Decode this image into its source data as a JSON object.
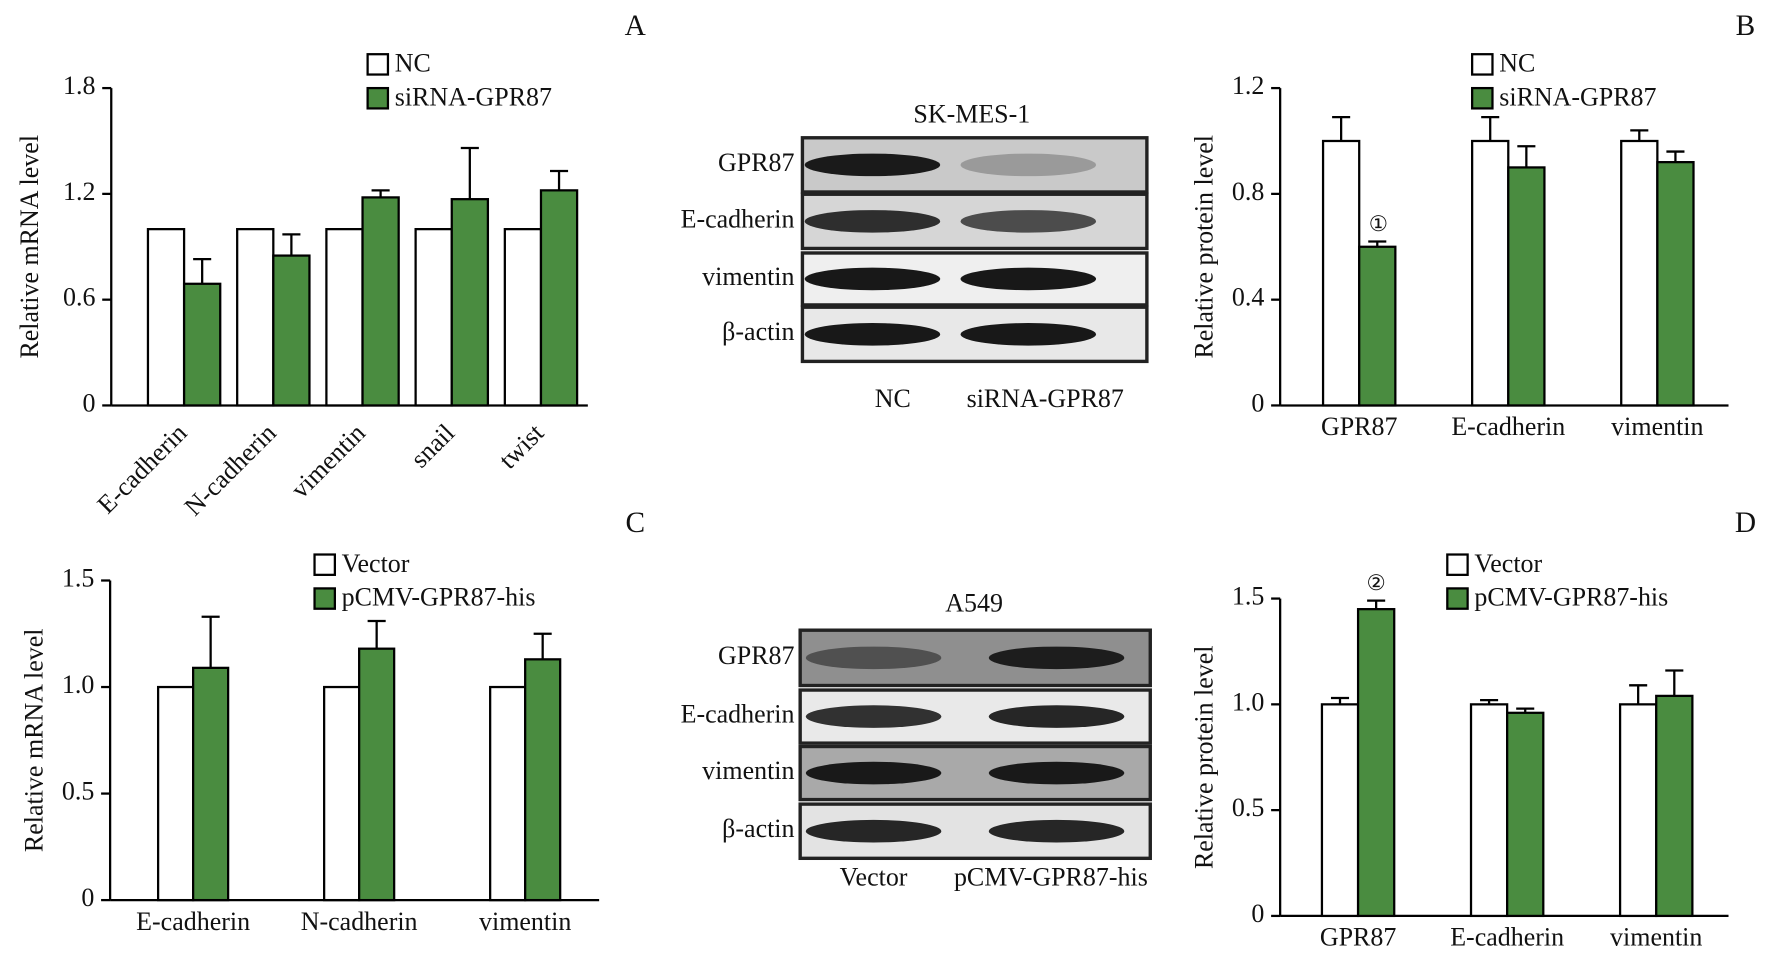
{
  "chart_data": [
    {
      "type": "bar",
      "ylabel": "Relative mRNA level",
      "categories": [
        "E-cadherin",
        "N-cadherin",
        "vimentin",
        "snail",
        "twist"
      ],
      "series": [
        {
          "name": "NC",
          "color": "#ffffff",
          "values": [
            1.0,
            1.0,
            1.0,
            1.0,
            1.0
          ]
        },
        {
          "name": "siRNA-GPR87",
          "color": "#4a8c40",
          "values": [
            0.69,
            0.85,
            1.18,
            1.17,
            1.22
          ],
          "errors": [
            0.14,
            0.12,
            0.04,
            0.29,
            0.11
          ]
        }
      ],
      "ylim": [
        0,
        1.8
      ],
      "yticks": [
        0,
        0.6,
        1.2,
        1.8
      ]
    },
    {
      "type": "bar",
      "ylabel": "Relative protein level",
      "categories": [
        "GPR87",
        "E-cadherin",
        "vimentin"
      ],
      "series": [
        {
          "name": "NC",
          "color": "#ffffff",
          "values": [
            1.0,
            1.0,
            1.0
          ],
          "errors": [
            0.09,
            0.09,
            0.04
          ]
        },
        {
          "name": "siRNA-GPR87",
          "color": "#4a8c40",
          "values": [
            0.6,
            0.9,
            0.92
          ],
          "errors": [
            0.02,
            0.08,
            0.04
          ]
        }
      ],
      "annotation": "①",
      "ylim": [
        0,
        1.2
      ],
      "yticks": [
        0,
        0.4,
        0.8,
        1.2
      ]
    },
    {
      "type": "bar",
      "ylabel": "Relative mRNA level",
      "categories": [
        "E-cadherin",
        "N-cadherin",
        "vimentin"
      ],
      "series": [
        {
          "name": "Vector",
          "color": "#ffffff",
          "values": [
            1.0,
            1.0,
            1.0
          ]
        },
        {
          "name": "pCMV-GPR87-his",
          "color": "#4a8c40",
          "values": [
            1.09,
            1.18,
            1.13
          ],
          "errors": [
            0.24,
            0.13,
            0.12
          ]
        }
      ],
      "ylim": [
        0,
        1.5
      ],
      "yticks": [
        0,
        0.5,
        {
          "value": 1,
          "label": "1.0"
        },
        1.5
      ]
    },
    {
      "type": "bar",
      "ylabel": "Relative protein level",
      "categories": [
        "GPR87",
        "E-cadherin",
        "vimentin"
      ],
      "series": [
        {
          "name": "Vector",
          "color": "#ffffff",
          "values": [
            1.0,
            1.0,
            1.0
          ],
          "errors": [
            0.03,
            0.02,
            0.09
          ]
        },
        {
          "name": "pCMV-GPR87-his",
          "color": "#4a8c40",
          "values": [
            1.45,
            0.96,
            1.04
          ],
          "errors": [
            0.04,
            0.02,
            0.12
          ]
        }
      ],
      "annotation": "②",
      "ylim": [
        0,
        1.5
      ],
      "yticks": [
        0,
        0.5,
        {
          "value": 1,
          "label": "1.0"
        },
        1.5
      ]
    }
  ],
  "blots": [
    {
      "title": "SK-MES-1",
      "rows": [
        "GPR87",
        "E-cadherin",
        "vimentin",
        "β-actin"
      ],
      "lanes": [
        "NC",
        "siRNA-GPR87"
      ]
    },
    {
      "title": "A549",
      "rows": [
        "GPR87",
        "E-cadherin",
        "vimentin",
        "β-actin"
      ],
      "lanes": [
        "Vector",
        "pCMV-GPR87-his"
      ]
    }
  ],
  "panel_labels": [
    "A",
    "B",
    "C",
    "D"
  ]
}
